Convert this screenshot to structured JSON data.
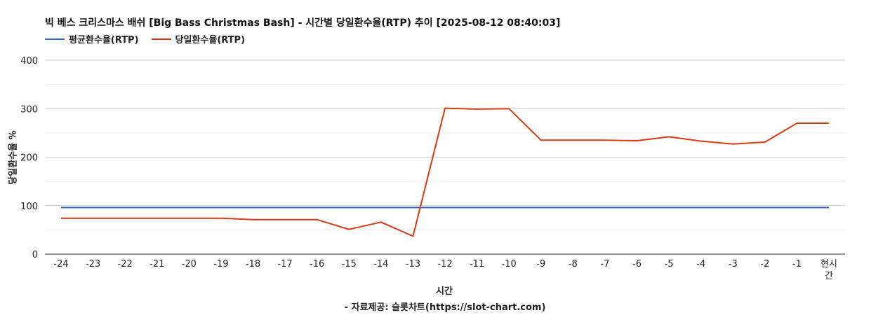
{
  "chart_data": {
    "type": "line",
    "title": "빅 베스 크리스마스 배쉬 [Big Bass Christmas Bash] - 시간별 당일환수율(RTP) 추이 [2025-08-12 08:40:03]",
    "xlabel": "시간",
    "ylabel": "당일환수율 %",
    "ylim": [
      0,
      400
    ],
    "yticks": [
      0,
      100,
      200,
      300,
      400
    ],
    "grid": true,
    "legend_position": "top-left",
    "categories": [
      "-24",
      "-23",
      "-22",
      "-21",
      "-20",
      "-19",
      "-18",
      "-17",
      "-16",
      "-15",
      "-14",
      "-13",
      "-12",
      "-11",
      "-10",
      "-9",
      "-8",
      "-7",
      "-6",
      "-5",
      "-4",
      "-3",
      "-2",
      "-1",
      "현시간"
    ],
    "series": [
      {
        "name": "평균환수율(RTP)",
        "color": "#3366cc",
        "values": [
          96,
          96,
          96,
          96,
          96,
          96,
          96,
          96,
          96,
          96,
          96,
          96,
          96,
          96,
          96,
          96,
          96,
          96,
          96,
          96,
          96,
          96,
          96,
          96,
          96
        ]
      },
      {
        "name": "당일환수율(RTP)",
        "color": "#dc3912",
        "values": [
          74,
          74,
          74,
          74,
          74,
          74,
          71,
          71,
          71,
          51,
          66,
          37,
          301,
          299,
          300,
          235,
          235,
          235,
          234,
          242,
          233,
          227,
          231,
          270,
          270
        ]
      }
    ]
  },
  "source_note": "- 자료제공: 슬롯차트(https://slot-chart.com)"
}
